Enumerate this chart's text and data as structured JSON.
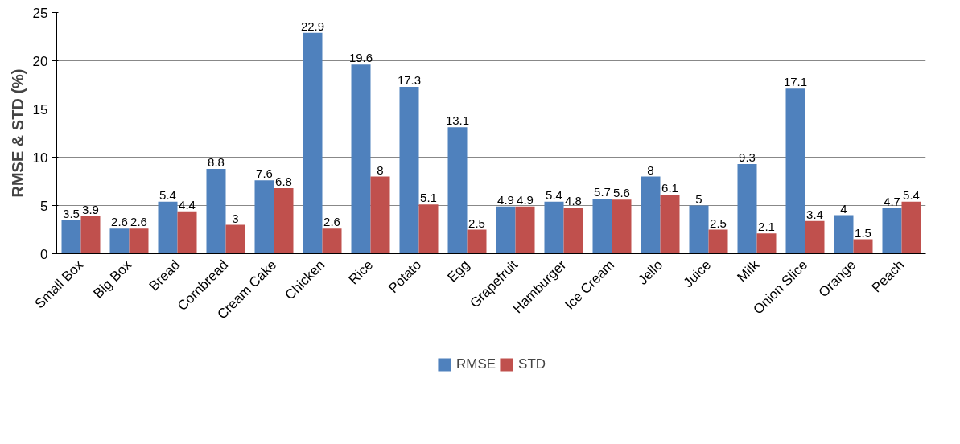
{
  "chart_data": {
    "type": "bar",
    "ylabel": "RMSE & STD (%)",
    "categories": [
      "Small Box",
      "Big Box",
      "Bread",
      "Cornbread",
      "Cream Cake",
      "Chicken",
      "Rice",
      "Potato",
      "Egg",
      "Grapefruit",
      "Hamburger",
      "Ice Cream",
      "Jello",
      "Juice",
      "Milk",
      "Onion Slice",
      "Orange",
      "Peach"
    ],
    "series": [
      {
        "name": "RMSE",
        "color": "#4f81bd",
        "values": [
          3.5,
          2.6,
          5.4,
          8.8,
          7.6,
          22.9,
          19.6,
          17.3,
          13.1,
          4.9,
          5.4,
          5.7,
          8,
          5,
          9.3,
          17.1,
          4,
          4.7
        ]
      },
      {
        "name": "STD",
        "color": "#c0504d",
        "values": [
          3.9,
          2.6,
          4.4,
          3,
          6.8,
          2.6,
          8,
          5.1,
          2.5,
          4.9,
          4.8,
          5.6,
          6.1,
          2.5,
          2.1,
          3.4,
          1.5,
          5.4
        ]
      }
    ],
    "ylim": [
      0,
      25
    ],
    "yticks": [
      0,
      5,
      10,
      15,
      20,
      25
    ],
    "grid": "y",
    "legend": "bottom",
    "data_labels": true
  }
}
